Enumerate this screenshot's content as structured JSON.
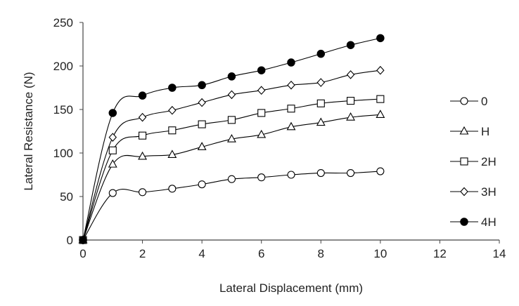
{
  "chart_data": {
    "type": "line",
    "title": "",
    "xlabel": "Lateral Displacement (mm)",
    "ylabel": "Lateral Resistance (N)",
    "xlim": [
      0,
      14
    ],
    "ylim": [
      0,
      250
    ],
    "xticks": [
      0,
      2,
      4,
      6,
      8,
      10,
      12,
      14
    ],
    "yticks": [
      0,
      50,
      100,
      150,
      200,
      250
    ],
    "grid": false,
    "legend_position": "right",
    "x": [
      0,
      1,
      2,
      3,
      4,
      5,
      6,
      7,
      8,
      9,
      10
    ],
    "series": [
      {
        "name": "0",
        "marker": "circle-open",
        "values": [
          0,
          54,
          55,
          59,
          64,
          70,
          72,
          75,
          77,
          77,
          79
        ]
      },
      {
        "name": "H",
        "marker": "triangle-open",
        "values": [
          0,
          87,
          96,
          98,
          107,
          116,
          121,
          130,
          135,
          141,
          144
        ]
      },
      {
        "name": "2H",
        "marker": "square-open",
        "values": [
          0,
          103,
          120,
          126,
          133,
          138,
          146,
          151,
          157,
          160,
          162
        ]
      },
      {
        "name": "3H",
        "marker": "diamond-open",
        "values": [
          0,
          118,
          141,
          149,
          158,
          167,
          172,
          178,
          181,
          190,
          195
        ]
      },
      {
        "name": "4H",
        "marker": "circle-filled",
        "values": [
          0,
          146,
          166,
          175,
          178,
          188,
          195,
          204,
          214,
          224,
          232
        ]
      }
    ]
  }
}
